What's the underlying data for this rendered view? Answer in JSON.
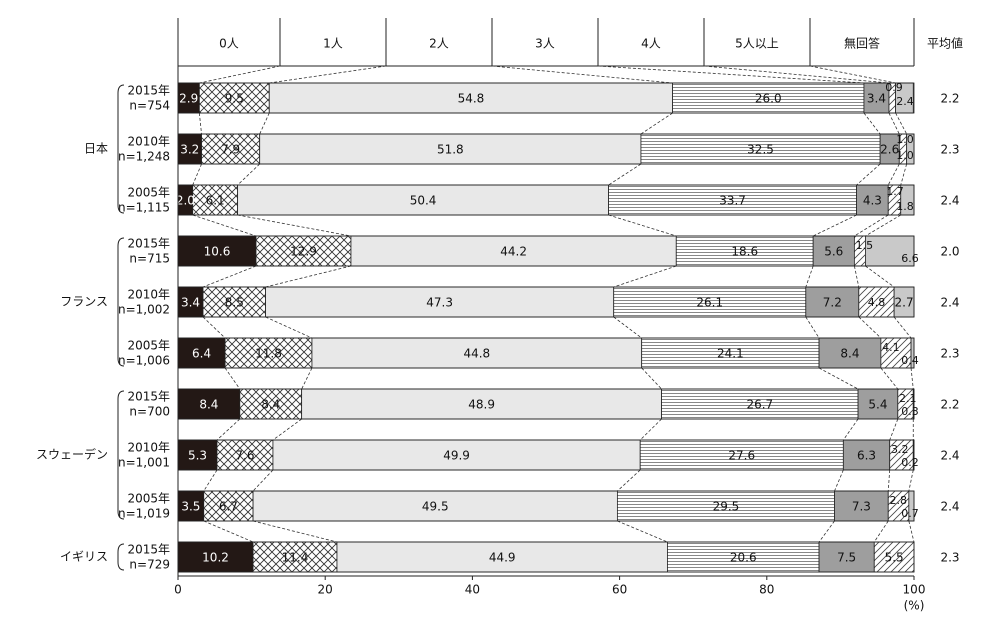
{
  "chart_data": {
    "type": "bar",
    "stacked": true,
    "orientation": "horizontal",
    "categories_header": [
      "0人",
      "1人",
      "2人",
      "3人",
      "4人",
      "5人以上",
      "無回答"
    ],
    "avg_header": "平均値",
    "xlim": [
      0,
      100
    ],
    "xticks": [
      "0",
      "20",
      "40",
      "60",
      "80",
      "100"
    ],
    "xunit": "(%)",
    "series_colors": [
      "#231815",
      "#ffffff",
      "#e8e8e8",
      "#ffffff",
      "#9e9e9e",
      "#ffffff",
      "#c9c9c9"
    ],
    "series_patterns": [
      "solid-dark",
      "crosshatch",
      "light-gray",
      "horizontal-lines",
      "medium-gray",
      "diagonal-lines",
      "light-solid"
    ],
    "groups": [
      {
        "name": "日本",
        "rows": [
          {
            "year": "2015年",
            "n": "n=754",
            "values": [
              2.9,
              9.5,
              54.8,
              26.0,
              3.4,
              0.9,
              2.4
            ],
            "labels": [
              "2.9",
              "9.5",
              "54.8",
              "26.0",
              "3.4",
              "0.9",
              "2.4"
            ],
            "avg": "2.2"
          },
          {
            "year": "2010年",
            "n": "n=1,248",
            "values": [
              3.2,
              7.9,
              51.8,
              32.5,
              2.6,
              1.0,
              1.0
            ],
            "labels": [
              "3.2",
              "7.9",
              "51.8",
              "32.5",
              "2.6",
              "1.0",
              "1.0"
            ],
            "avg": "2.3"
          },
          {
            "year": "2005年",
            "n": "n=1,115",
            "values": [
              2.0,
              6.1,
              50.4,
              33.7,
              4.3,
              1.7,
              1.8
            ],
            "labels": [
              "2.0",
              "6.1",
              "50.4",
              "33.7",
              "4.3",
              "1.7",
              "1.8"
            ],
            "avg": "2.4"
          }
        ]
      },
      {
        "name": "フランス",
        "rows": [
          {
            "year": "2015年",
            "n": "n=715",
            "values": [
              10.6,
              12.9,
              44.2,
              18.6,
              5.6,
              1.5,
              6.6
            ],
            "labels": [
              "10.6",
              "12.9",
              "44.2",
              "18.6",
              "5.6",
              "1.5",
              "6.6"
            ],
            "avg": "2.0"
          },
          {
            "year": "2010年",
            "n": "n=1,002",
            "values": [
              3.4,
              8.5,
              47.3,
              26.1,
              7.2,
              4.8,
              2.7
            ],
            "labels": [
              "3.4",
              "8.5",
              "47.3",
              "26.1",
              "7.2",
              "4.8",
              "2.7"
            ],
            "avg": "2.4"
          },
          {
            "year": "2005年",
            "n": "n=1,006",
            "values": [
              6.4,
              11.8,
              44.8,
              24.1,
              8.4,
              4.1,
              0.4
            ],
            "labels": [
              "6.4",
              "11.8",
              "44.8",
              "24.1",
              "8.4",
              "4.1",
              "0.4"
            ],
            "avg": "2.3"
          }
        ]
      },
      {
        "name": "スウェーデン",
        "rows": [
          {
            "year": "2015年",
            "n": "n=700",
            "values": [
              8.4,
              8.4,
              48.9,
              26.7,
              5.4,
              2.1,
              0.3
            ],
            "labels": [
              "8.4",
              "8.4",
              "48.9",
              "26.7",
              "5.4",
              "2.1",
              "0.3"
            ],
            "avg": "2.2"
          },
          {
            "year": "2010年",
            "n": "n=1,001",
            "values": [
              5.3,
              7.6,
              49.9,
              27.6,
              6.3,
              3.2,
              0.2
            ],
            "labels": [
              "5.3",
              "7.6",
              "49.9",
              "27.6",
              "6.3",
              "3.2",
              "0.2"
            ],
            "avg": "2.4"
          },
          {
            "year": "2005年",
            "n": "n=1,019",
            "values": [
              3.5,
              6.7,
              49.5,
              29.5,
              7.3,
              2.8,
              0.7
            ],
            "labels": [
              "3.5",
              "6.7",
              "49.5",
              "29.5",
              "7.3",
              "2.8",
              "0.7"
            ],
            "avg": "2.4"
          }
        ]
      },
      {
        "name": "イギリス",
        "rows": [
          {
            "year": "2015年",
            "n": "n=729",
            "values": [
              10.2,
              11.4,
              44.9,
              20.6,
              7.5,
              5.5,
              0.0
            ],
            "labels": [
              "10.2",
              "11.4",
              "44.9",
              "20.6",
              "7.5",
              "5.5",
              ""
            ],
            "avg": "2.3"
          }
        ]
      }
    ]
  }
}
